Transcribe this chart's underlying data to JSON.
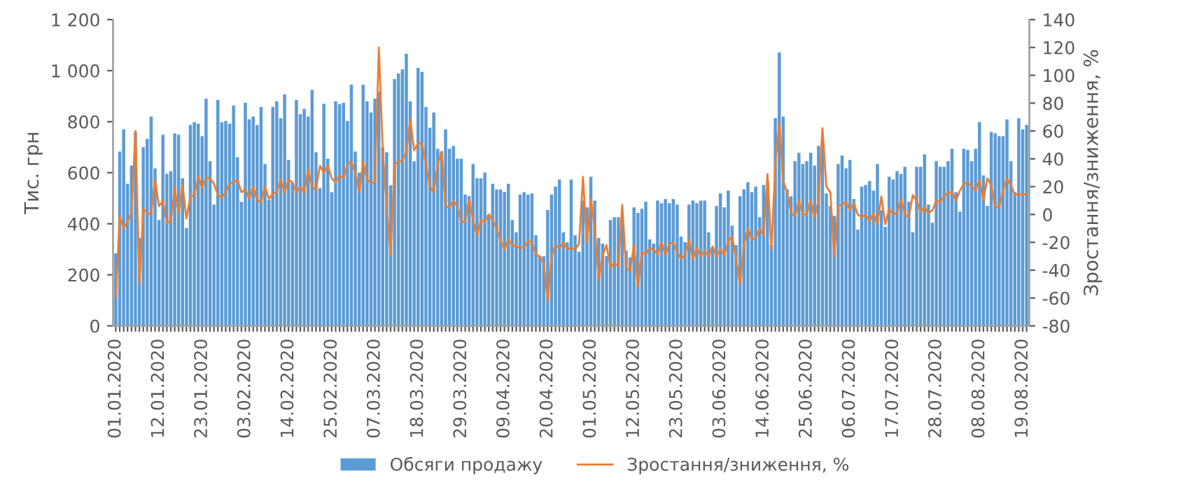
{
  "chart_data": {
    "type": "bar",
    "ylabel": "Тис. грн",
    "y2label": "Зростання/зниження, %",
    "legend": "bottom",
    "grid": false,
    "categories": [
      "01.01.2020",
      null,
      null,
      null,
      null,
      null,
      null,
      null,
      null,
      null,
      null,
      "12.01.2020",
      null,
      null,
      null,
      null,
      null,
      null,
      null,
      null,
      null,
      null,
      "23.01.2020",
      null,
      null,
      null,
      null,
      null,
      null,
      null,
      null,
      null,
      null,
      "03.02.2020",
      null,
      null,
      null,
      null,
      null,
      null,
      null,
      null,
      null,
      null,
      "14.02.2020",
      null,
      null,
      null,
      null,
      null,
      null,
      null,
      null,
      null,
      null,
      "25.02.2020",
      null,
      null,
      null,
      null,
      null,
      null,
      null,
      null,
      null,
      null,
      "07.03.2020",
      null,
      null,
      null,
      null,
      null,
      null,
      null,
      null,
      null,
      null,
      "18.03.2020",
      null,
      null,
      null,
      null,
      null,
      null,
      null,
      null,
      null,
      null,
      "29.03.2020",
      null,
      null,
      null,
      null,
      null,
      null,
      null,
      null,
      null,
      null,
      "09.04.2020",
      null,
      null,
      null,
      null,
      null,
      null,
      null,
      null,
      null,
      null,
      "20.04.2020",
      null,
      null,
      null,
      null,
      null,
      null,
      null,
      null,
      null,
      null,
      "01.05.2020",
      null,
      null,
      null,
      null,
      null,
      null,
      null,
      null,
      null,
      null,
      "12.05.2020",
      null,
      null,
      null,
      null,
      null,
      null,
      null,
      null,
      null,
      null,
      "23.05.2020",
      null,
      null,
      null,
      null,
      null,
      null,
      null,
      null,
      null,
      null,
      "03.06.2020",
      null,
      null,
      null,
      null,
      null,
      null,
      null,
      null,
      null,
      null,
      "14.06.2020",
      null,
      null,
      null,
      null,
      null,
      null,
      null,
      null,
      null,
      null,
      "25.06.2020",
      null,
      null,
      null,
      null,
      null,
      null,
      null,
      null,
      null,
      null,
      "06.07.2020",
      null,
      null,
      null,
      null,
      null,
      null,
      null,
      null,
      null,
      null,
      "17.07.2020",
      null,
      null,
      null,
      null,
      null,
      null,
      null,
      null,
      null,
      null,
      "28.07.2020",
      null,
      null,
      null,
      null,
      null,
      null,
      null,
      null,
      null,
      null,
      "08.08.2020",
      null,
      null,
      null,
      null,
      null,
      null,
      null,
      null,
      null,
      null,
      "19.08.2020",
      null
    ],
    "ylim": [
      0,
      1200
    ],
    "yticks": [
      0,
      200,
      400,
      600,
      800,
      {
        "value": 1000,
        "label": "1 000"
      },
      {
        "value": 1200,
        "label": "1 200"
      }
    ],
    "y2lim": [
      -80,
      140
    ],
    "y2ticks": [
      -80,
      -60,
      -40,
      -20,
      0,
      20,
      40,
      60,
      80,
      100,
      120,
      140
    ],
    "series": [
      {
        "name": "Обсяги продажу",
        "color": "#5b9bd5",
        "values": [
          284,
          683,
          770,
          557,
          628,
          760,
          344,
          700,
          732,
          820,
          617,
          415,
          749,
          596,
          606,
          754,
          749,
          579,
          383,
          787,
          798,
          792,
          743,
          890,
          645,
          475,
          885,
          798,
          803,
          792,
          863,
          661,
          486,
          874,
          809,
          820,
          787,
          858,
          634,
          492,
          858,
          880,
          814,
          907,
          650,
          560,
          885,
          830,
          850,
          820,
          925,
          680,
          540,
          870,
          655,
          524,
          880,
          869,
          874,
          803,
          945,
          683,
          600,
          945,
          880,
          836,
          890,
          918,
          700,
          680,
          551,
          967,
          989,
          1005,
          1066,
          880,
          645,
          1011,
          995,
          858,
          776,
          836,
          694,
          683,
          770,
          694,
          705,
          655,
          655,
          514,
          508,
          634,
          579,
          579,
          601,
          437,
          557,
          535,
          535,
          525,
          557,
          415,
          366,
          514,
          524,
          514,
          519,
          355,
          273,
          273,
          454,
          514,
          546,
          573,
          366,
          328,
          573,
          355,
          290,
          491,
          464,
          584,
          491,
          344,
          322,
          273,
          415,
          426,
          426,
          437,
          295,
          268,
          464,
          443,
          459,
          486,
          339,
          322,
          491,
          481,
          497,
          481,
          497,
          475,
          350,
          328,
          475,
          491,
          481,
          491,
          491,
          366,
          306,
          470,
          519,
          464,
          530,
          393,
          317,
          508,
          535,
          563,
          524,
          546,
          426,
          552,
          563,
          317,
          814,
          1071,
          820,
          535,
          508,
          645,
          678,
          634,
          645,
          678,
          628,
          705,
          720,
          519,
          470,
          431,
          634,
          667,
          617,
          650,
          497,
          377,
          546,
          552,
          568,
          530,
          634,
          453,
          388,
          584,
          573,
          606,
          595,
          623,
          486,
          366,
          623,
          623,
          672,
          475,
          404,
          645,
          623,
          623,
          645,
          694,
          524,
          448,
          694,
          689,
          645,
          694,
          798,
          590,
          470,
          760,
          754,
          743,
          743,
          809,
          645,
          524,
          814,
          770,
          787
        ]
      },
      {
        "name": "Зростання/зниження, %",
        "type": "line",
        "axis": "y2",
        "color": "#ed7d31",
        "values": [
          -59,
          -1,
          -10,
          -5,
          1,
          60,
          -50,
          4,
          1,
          0,
          25,
          6,
          10,
          -6,
          -5,
          19,
          1,
          21,
          -3,
          13,
          14,
          27,
          19,
          26,
          26,
          22,
          14,
          12,
          16,
          22,
          23,
          25,
          16,
          18,
          11,
          20,
          10,
          9,
          20,
          11,
          15,
          16,
          25,
          16,
          25,
          23,
          16,
          20,
          16,
          32,
          20,
          18,
          35,
          30,
          35,
          26,
          23,
          28,
          26,
          36,
          38,
          30,
          16,
          38,
          25,
          23,
          23,
          120,
          46,
          6,
          -29,
          36,
          38,
          39,
          45,
          68,
          46,
          51,
          51,
          36,
          20,
          16,
          36,
          45,
          6,
          5,
          10,
          6,
          -5,
          -5,
          11,
          -4,
          -15,
          -4,
          -5,
          0,
          -4,
          -10,
          -19,
          -25,
          -18,
          -22,
          -23,
          -24,
          -24,
          -19,
          -20,
          -29,
          -30,
          -35,
          -62,
          -30,
          -22,
          -24,
          -20,
          -25,
          -24,
          -25,
          -21,
          27,
          -20,
          11,
          -10,
          -47,
          -29,
          -22,
          -38,
          -35,
          -37,
          7,
          -39,
          -40,
          -22,
          -52,
          -27,
          -29,
          -24,
          -25,
          -29,
          -20,
          -29,
          -21,
          -20,
          -27,
          -32,
          -29,
          -18,
          -32,
          -24,
          -30,
          -26,
          -30,
          -23,
          -30,
          -25,
          -29,
          -19,
          -16,
          -32,
          -50,
          -22,
          -10,
          -18,
          -17,
          -10,
          -15,
          29,
          -25,
          36,
          66,
          24,
          16,
          1,
          -1,
          10,
          0,
          0,
          10,
          -2,
          10,
          62,
          20,
          16,
          -30,
          6,
          7,
          9,
          3,
          8,
          0,
          -2,
          0,
          -5,
          1,
          -7,
          13,
          -7,
          4,
          0,
          1,
          11,
          0,
          -2,
          14,
          10,
          2,
          5,
          1,
          3,
          10,
          9,
          13,
          16,
          16,
          10,
          17,
          22,
          23,
          20,
          17,
          25,
          10,
          26,
          21,
          6,
          5,
          17,
          26,
          21,
          14,
          15,
          14,
          15
        ]
      }
    ]
  }
}
